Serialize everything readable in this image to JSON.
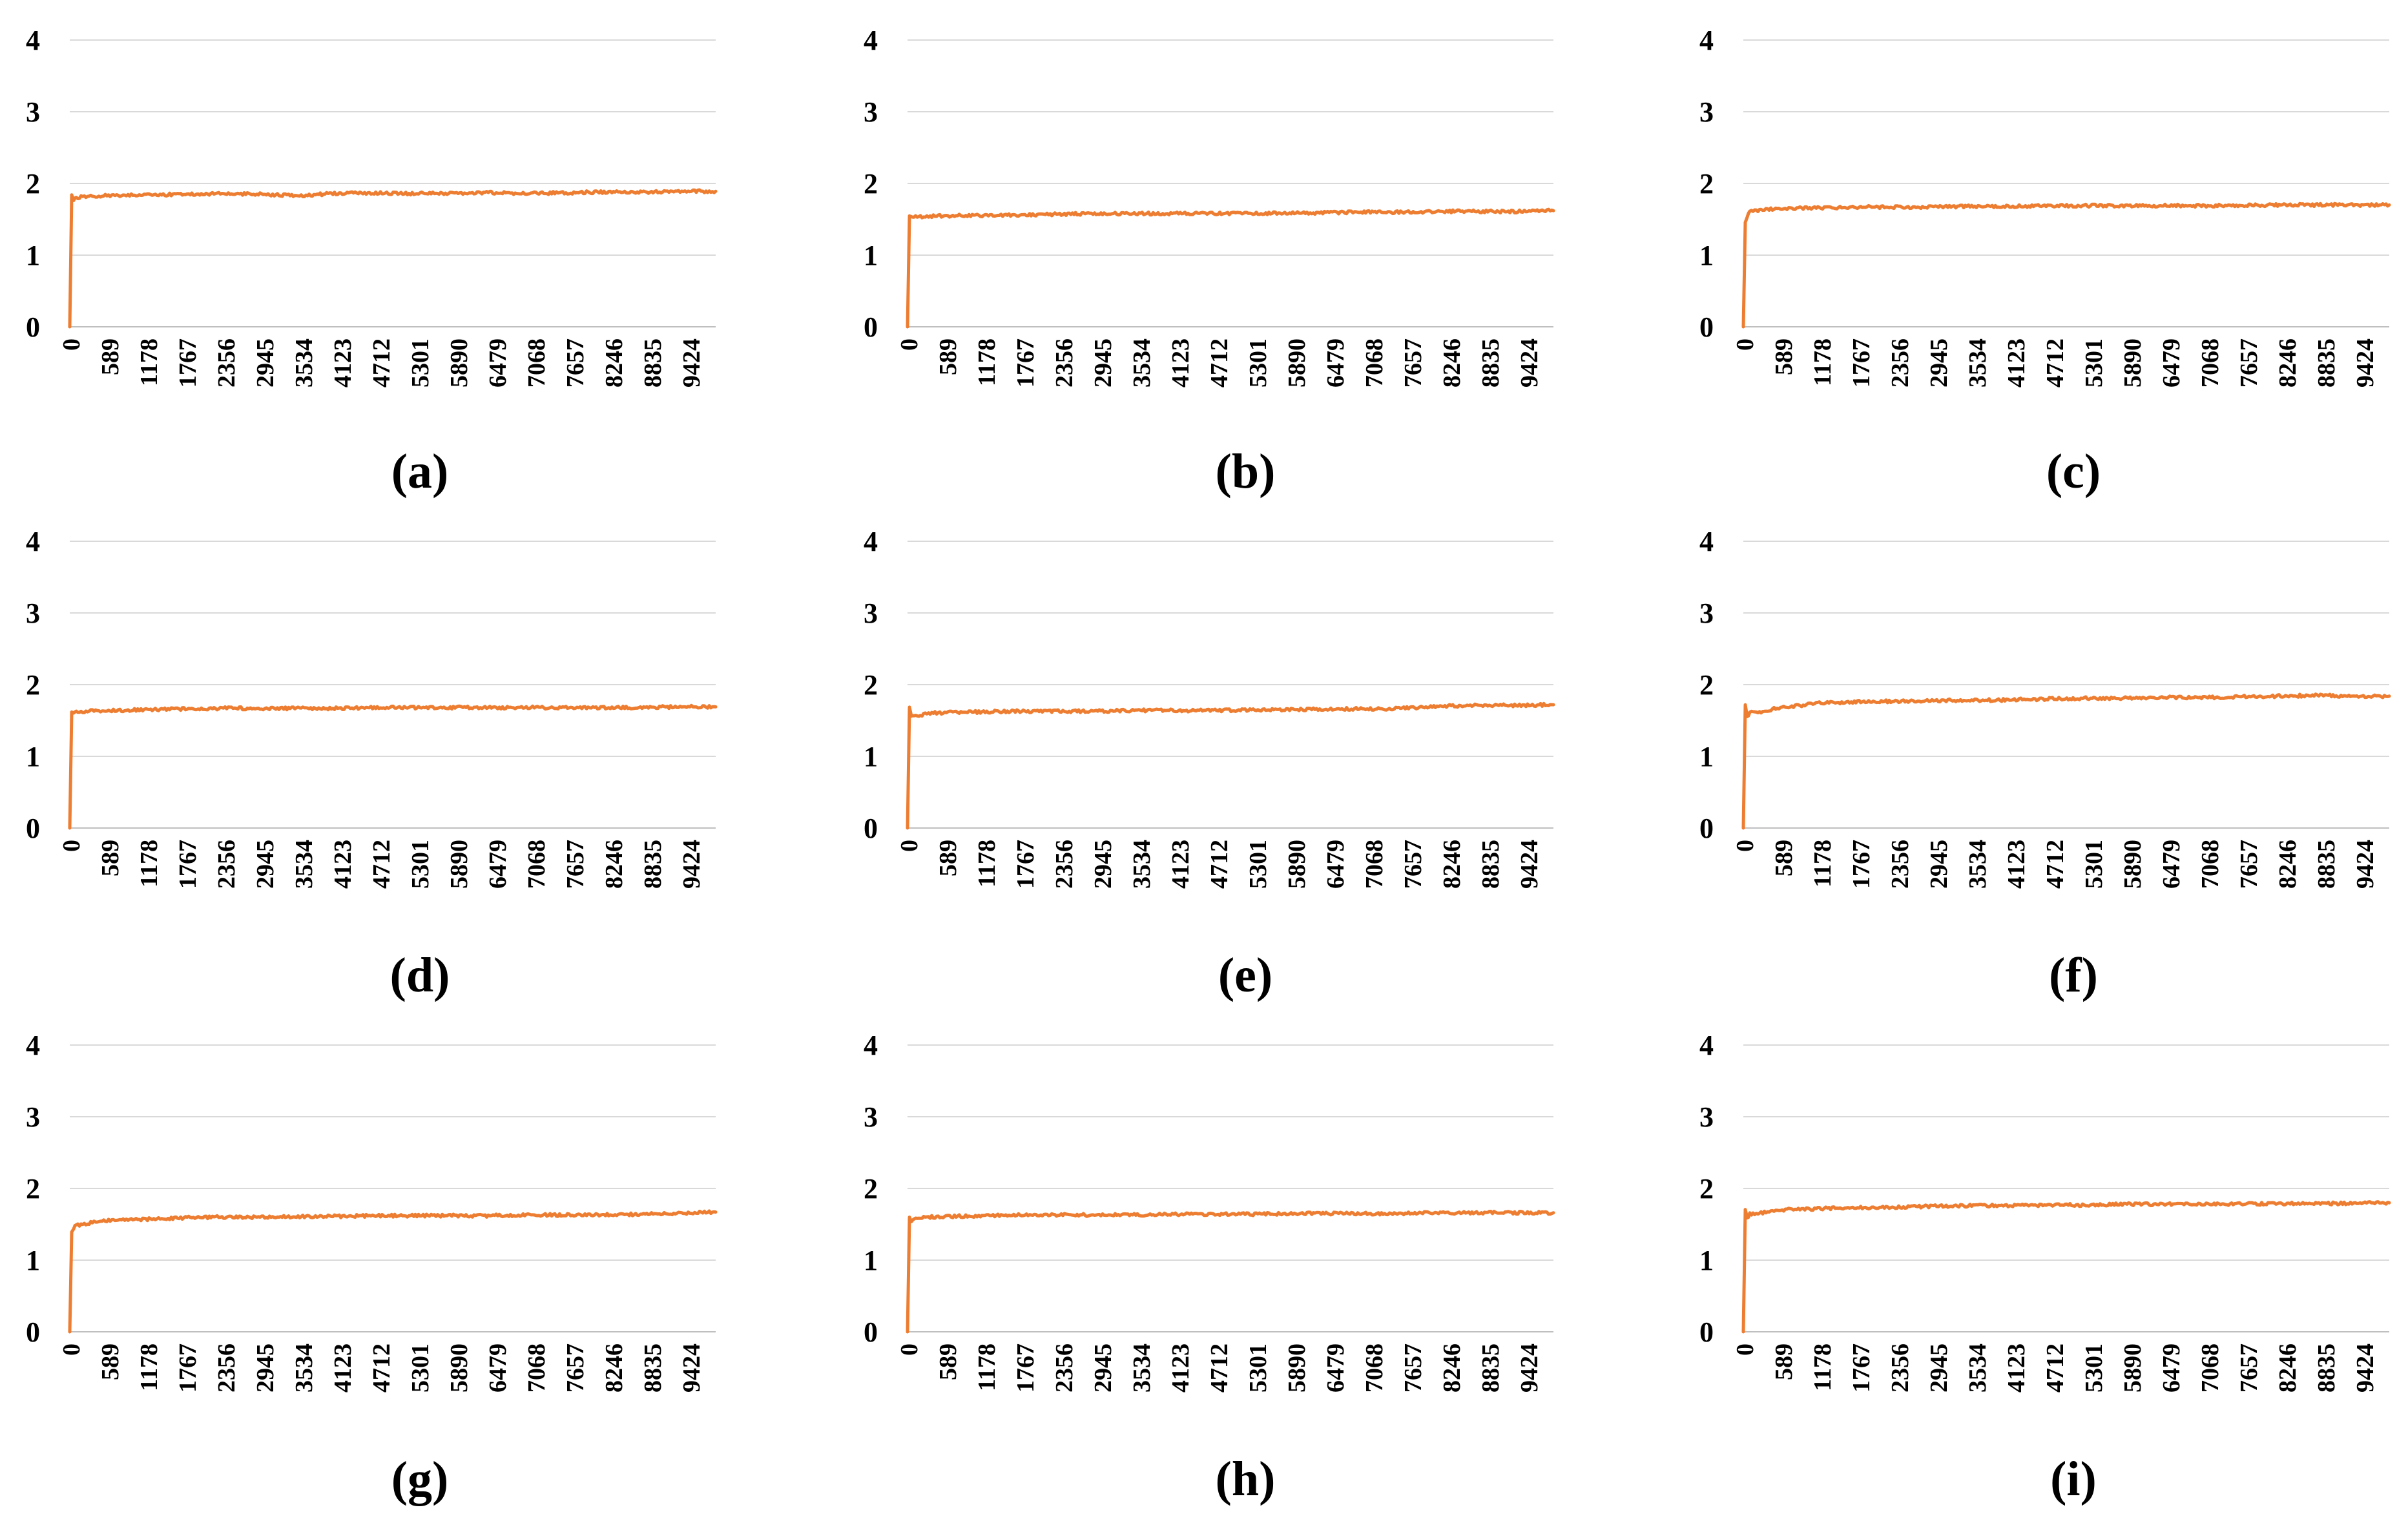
{
  "colors": {
    "series": "#ED7D31",
    "grid": "#D9D9D9"
  },
  "chart_data": [
    {
      "type": "line",
      "caption": "(a)",
      "x_tick_labels": [
        "0",
        "589",
        "1178",
        "1767",
        "2356",
        "2945",
        "3534",
        "4123",
        "4712",
        "5301",
        "5890",
        "6479",
        "7068",
        "7657",
        "8246",
        "8835",
        "9424"
      ],
      "y_tick_labels": [
        "0",
        "1",
        "2",
        "3",
        "4"
      ],
      "xlim": [
        0,
        10000
      ],
      "ylim": [
        0,
        4
      ],
      "grid": true,
      "series": [
        {
          "x": [
            0,
            30,
            60,
            100,
            300,
            600,
            1178,
            1767,
            2356,
            2945,
            3534,
            4123,
            4712,
            5301,
            5890,
            6479,
            7068,
            7657,
            8246,
            8835,
            9424,
            10000
          ],
          "values": [
            0,
            1.85,
            1.78,
            1.8,
            1.82,
            1.83,
            1.84,
            1.85,
            1.86,
            1.85,
            1.83,
            1.86,
            1.87,
            1.86,
            1.86,
            1.87,
            1.86,
            1.87,
            1.88,
            1.88,
            1.89,
            1.89
          ]
        }
      ]
    },
    {
      "type": "line",
      "caption": "(b)",
      "x_tick_labels": [
        "0",
        "589",
        "1178",
        "1767",
        "2356",
        "2945",
        "3534",
        "4123",
        "4712",
        "5301",
        "5890",
        "6479",
        "7068",
        "7657",
        "8246",
        "8835",
        "9424"
      ],
      "y_tick_labels": [
        "0",
        "1",
        "2",
        "3",
        "4"
      ],
      "xlim": [
        0,
        10000
      ],
      "ylim": [
        0,
        4
      ],
      "grid": true,
      "series": [
        {
          "x": [
            0,
            30,
            60,
            100,
            300,
            600,
            1178,
            1767,
            2356,
            2945,
            3534,
            4123,
            4712,
            5301,
            5890,
            6479,
            7068,
            7657,
            8246,
            8835,
            9424,
            10000
          ],
          "values": [
            0,
            1.56,
            1.53,
            1.54,
            1.54,
            1.55,
            1.55,
            1.56,
            1.57,
            1.58,
            1.58,
            1.58,
            1.58,
            1.58,
            1.59,
            1.59,
            1.6,
            1.6,
            1.61,
            1.61,
            1.61,
            1.62
          ]
        }
      ]
    },
    {
      "type": "line",
      "caption": "(c)",
      "x_tick_labels": [
        "0",
        "589",
        "1178",
        "1767",
        "2356",
        "2945",
        "3534",
        "4123",
        "4712",
        "5301",
        "5890",
        "6479",
        "7068",
        "7657",
        "8246",
        "8835",
        "9424"
      ],
      "y_tick_labels": [
        "0",
        "1",
        "2",
        "3",
        "4"
      ],
      "xlim": [
        0,
        10000
      ],
      "ylim": [
        0,
        4
      ],
      "grid": true,
      "series": [
        {
          "x": [
            0,
            30,
            60,
            100,
            300,
            600,
            1178,
            1767,
            2356,
            2945,
            3534,
            4123,
            4712,
            5301,
            5890,
            6479,
            7068,
            7657,
            8246,
            8835,
            9424,
            10000
          ],
          "values": [
            0,
            1.45,
            1.55,
            1.6,
            1.64,
            1.65,
            1.66,
            1.67,
            1.67,
            1.67,
            1.68,
            1.68,
            1.69,
            1.69,
            1.69,
            1.69,
            1.69,
            1.69,
            1.7,
            1.7,
            1.7,
            1.7
          ]
        }
      ]
    },
    {
      "type": "line",
      "caption": "(d)",
      "x_tick_labels": [
        "0",
        "589",
        "1178",
        "1767",
        "2356",
        "2945",
        "3534",
        "4123",
        "4712",
        "5301",
        "5890",
        "6479",
        "7068",
        "7657",
        "8246",
        "8835",
        "9424"
      ],
      "y_tick_labels": [
        "0",
        "1",
        "2",
        "3",
        "4"
      ],
      "xlim": [
        0,
        10000
      ],
      "ylim": [
        0,
        4
      ],
      "grid": true,
      "series": [
        {
          "x": [
            0,
            30,
            60,
            100,
            300,
            600,
            1178,
            1767,
            2356,
            2945,
            3534,
            4123,
            4712,
            5301,
            5890,
            6479,
            7068,
            7657,
            8246,
            8835,
            9424,
            10000
          ],
          "values": [
            0,
            1.6,
            1.6,
            1.62,
            1.63,
            1.64,
            1.65,
            1.66,
            1.67,
            1.67,
            1.67,
            1.67,
            1.68,
            1.68,
            1.68,
            1.68,
            1.68,
            1.68,
            1.68,
            1.68,
            1.69,
            1.69
          ]
        }
      ]
    },
    {
      "type": "line",
      "caption": "(e)",
      "x_tick_labels": [
        "0",
        "589",
        "1178",
        "1767",
        "2356",
        "2945",
        "3534",
        "4123",
        "4712",
        "5301",
        "5890",
        "6479",
        "7068",
        "7657",
        "8246",
        "8835",
        "9424"
      ],
      "y_tick_labels": [
        "0",
        "1",
        "2",
        "3",
        "4"
      ],
      "xlim": [
        0,
        10000
      ],
      "ylim": [
        0,
        4
      ],
      "grid": true,
      "series": [
        {
          "x": [
            0,
            30,
            60,
            100,
            200,
            300,
            600,
            1178,
            1767,
            2356,
            2945,
            3534,
            4123,
            4712,
            5301,
            5890,
            6479,
            7068,
            7657,
            8246,
            8835,
            9424,
            10000
          ],
          "values": [
            0,
            1.68,
            1.55,
            1.58,
            1.56,
            1.6,
            1.61,
            1.62,
            1.63,
            1.63,
            1.63,
            1.64,
            1.64,
            1.64,
            1.65,
            1.65,
            1.66,
            1.66,
            1.67,
            1.7,
            1.71,
            1.71,
            1.72
          ]
        }
      ]
    },
    {
      "type": "line",
      "caption": "(f)",
      "x_tick_labels": [
        "0",
        "589",
        "1178",
        "1767",
        "2356",
        "2945",
        "3534",
        "4123",
        "4712",
        "5301",
        "5890",
        "6479",
        "7068",
        "7657",
        "8246",
        "8835",
        "9424"
      ],
      "y_tick_labels": [
        "0",
        "1",
        "2",
        "3",
        "4"
      ],
      "xlim": [
        0,
        10000
      ],
      "ylim": [
        0,
        4
      ],
      "grid": true,
      "series": [
        {
          "x": [
            0,
            30,
            60,
            100,
            200,
            400,
            600,
            1178,
            1767,
            2356,
            2945,
            3534,
            4123,
            4712,
            5301,
            5890,
            6479,
            7068,
            7657,
            8246,
            8835,
            9424,
            10000
          ],
          "values": [
            0,
            1.72,
            1.55,
            1.62,
            1.6,
            1.65,
            1.68,
            1.74,
            1.76,
            1.77,
            1.78,
            1.78,
            1.79,
            1.8,
            1.81,
            1.81,
            1.82,
            1.82,
            1.83,
            1.84,
            1.85,
            1.84,
            1.84
          ]
        }
      ]
    },
    {
      "type": "line",
      "caption": "(g)",
      "x_tick_labels": [
        "0",
        "589",
        "1178",
        "1767",
        "2356",
        "2945",
        "3534",
        "4123",
        "4712",
        "5301",
        "5890",
        "6479",
        "7068",
        "7657",
        "8246",
        "8835",
        "9424"
      ],
      "y_tick_labels": [
        "0",
        "1",
        "2",
        "3",
        "4"
      ],
      "xlim": [
        0,
        10000
      ],
      "ylim": [
        0,
        4
      ],
      "grid": true,
      "series": [
        {
          "x": [
            0,
            30,
            60,
            100,
            200,
            400,
            600,
            1178,
            1767,
            2356,
            2945,
            3534,
            4123,
            4712,
            5301,
            5890,
            6479,
            7068,
            7657,
            8246,
            8835,
            9424,
            10000
          ],
          "values": [
            0,
            1.38,
            1.45,
            1.48,
            1.5,
            1.53,
            1.55,
            1.57,
            1.59,
            1.6,
            1.6,
            1.61,
            1.61,
            1.62,
            1.62,
            1.62,
            1.62,
            1.63,
            1.63,
            1.63,
            1.64,
            1.65,
            1.67
          ]
        }
      ]
    },
    {
      "type": "line",
      "caption": "(h)",
      "x_tick_labels": [
        "0",
        "589",
        "1178",
        "1767",
        "2356",
        "2945",
        "3534",
        "4123",
        "4712",
        "5301",
        "5890",
        "6479",
        "7068",
        "7657",
        "8246",
        "8835",
        "9424"
      ],
      "y_tick_labels": [
        "0",
        "1",
        "2",
        "3",
        "4"
      ],
      "xlim": [
        0,
        10000
      ],
      "ylim": [
        0,
        4
      ],
      "grid": true,
      "series": [
        {
          "x": [
            0,
            30,
            60,
            100,
            300,
            600,
            1178,
            1767,
            2356,
            2945,
            3534,
            4123,
            4712,
            5301,
            5890,
            6479,
            7068,
            7657,
            8246,
            8835,
            9424,
            10000
          ],
          "values": [
            0,
            1.58,
            1.55,
            1.58,
            1.6,
            1.61,
            1.62,
            1.63,
            1.63,
            1.63,
            1.63,
            1.64,
            1.64,
            1.64,
            1.65,
            1.65,
            1.65,
            1.65,
            1.66,
            1.66,
            1.66,
            1.66
          ]
        }
      ]
    },
    {
      "type": "line",
      "caption": "(i)",
      "x_tick_labels": [
        "0",
        "589",
        "1178",
        "1767",
        "2356",
        "2945",
        "3534",
        "4123",
        "4712",
        "5301",
        "5890",
        "6479",
        "7068",
        "7657",
        "8246",
        "8835",
        "9424"
      ],
      "y_tick_labels": [
        "0",
        "1",
        "2",
        "3",
        "4"
      ],
      "xlim": [
        0,
        10000
      ],
      "ylim": [
        0,
        4
      ],
      "grid": true,
      "series": [
        {
          "x": [
            0,
            30,
            60,
            100,
            200,
            400,
            600,
            1178,
            1767,
            2356,
            2945,
            3534,
            4123,
            4712,
            5301,
            5890,
            6479,
            7068,
            7657,
            8246,
            8835,
            9424,
            10000
          ],
          "values": [
            0,
            1.72,
            1.58,
            1.65,
            1.64,
            1.68,
            1.7,
            1.72,
            1.73,
            1.74,
            1.75,
            1.76,
            1.76,
            1.77,
            1.77,
            1.78,
            1.78,
            1.78,
            1.78,
            1.79,
            1.79,
            1.79,
            1.8
          ]
        }
      ]
    }
  ]
}
